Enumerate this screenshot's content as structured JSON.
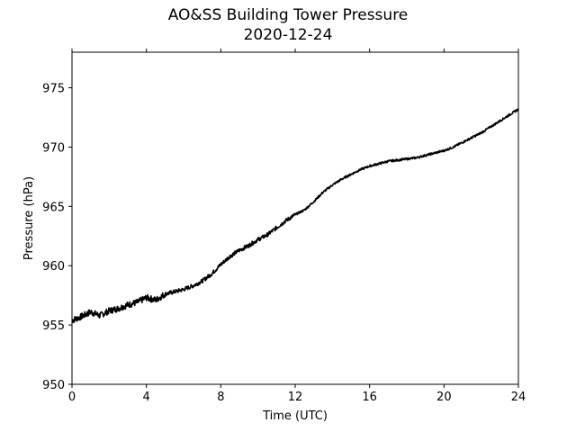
{
  "chart_data": {
    "type": "line",
    "title": "AO&SS Building Tower Pressure",
    "subtitle": "2020-12-24",
    "xlabel": "Time (UTC)",
    "ylabel": "Pressure (hPa)",
    "xlim": [
      0,
      24
    ],
    "ylim": [
      950,
      978
    ],
    "xticks": [
      0,
      4,
      8,
      12,
      16,
      20,
      24
    ],
    "yticks": [
      950,
      955,
      960,
      965,
      970,
      975
    ],
    "grid": false,
    "legend": "none",
    "line_color": "#000000",
    "series": [
      {
        "x": [
          0,
          0.5,
          1,
          1.5,
          2,
          2.5,
          3,
          3.5,
          4,
          4.5,
          5,
          5.5,
          6,
          6.5,
          7,
          7.5,
          8,
          8.5,
          9,
          9.5,
          10,
          10.5,
          11,
          11.5,
          12,
          12.5,
          13,
          13.5,
          14,
          14.5,
          15,
          15.5,
          16,
          16.5,
          17,
          17.5,
          18,
          18.5,
          19,
          19.5,
          20,
          20.5,
          21,
          21.5,
          22,
          22.5,
          23,
          23.5,
          24
        ],
        "values": [
          955.4,
          955.7,
          956.1,
          955.8,
          956.2,
          956.4,
          956.7,
          956.9,
          957.3,
          957.1,
          957.6,
          957.8,
          958.0,
          958.3,
          958.7,
          959.3,
          960.1,
          960.8,
          961.3,
          961.7,
          962.2,
          962.6,
          963.2,
          963.8,
          964.3,
          964.7,
          965.4,
          966.2,
          966.8,
          967.3,
          967.7,
          968.1,
          968.4,
          968.6,
          968.8,
          968.9,
          969.0,
          969.1,
          969.3,
          969.5,
          969.7,
          970.0,
          970.4,
          970.8,
          971.2,
          971.7,
          972.2,
          972.7,
          973.2
        ]
      }
    ]
  }
}
